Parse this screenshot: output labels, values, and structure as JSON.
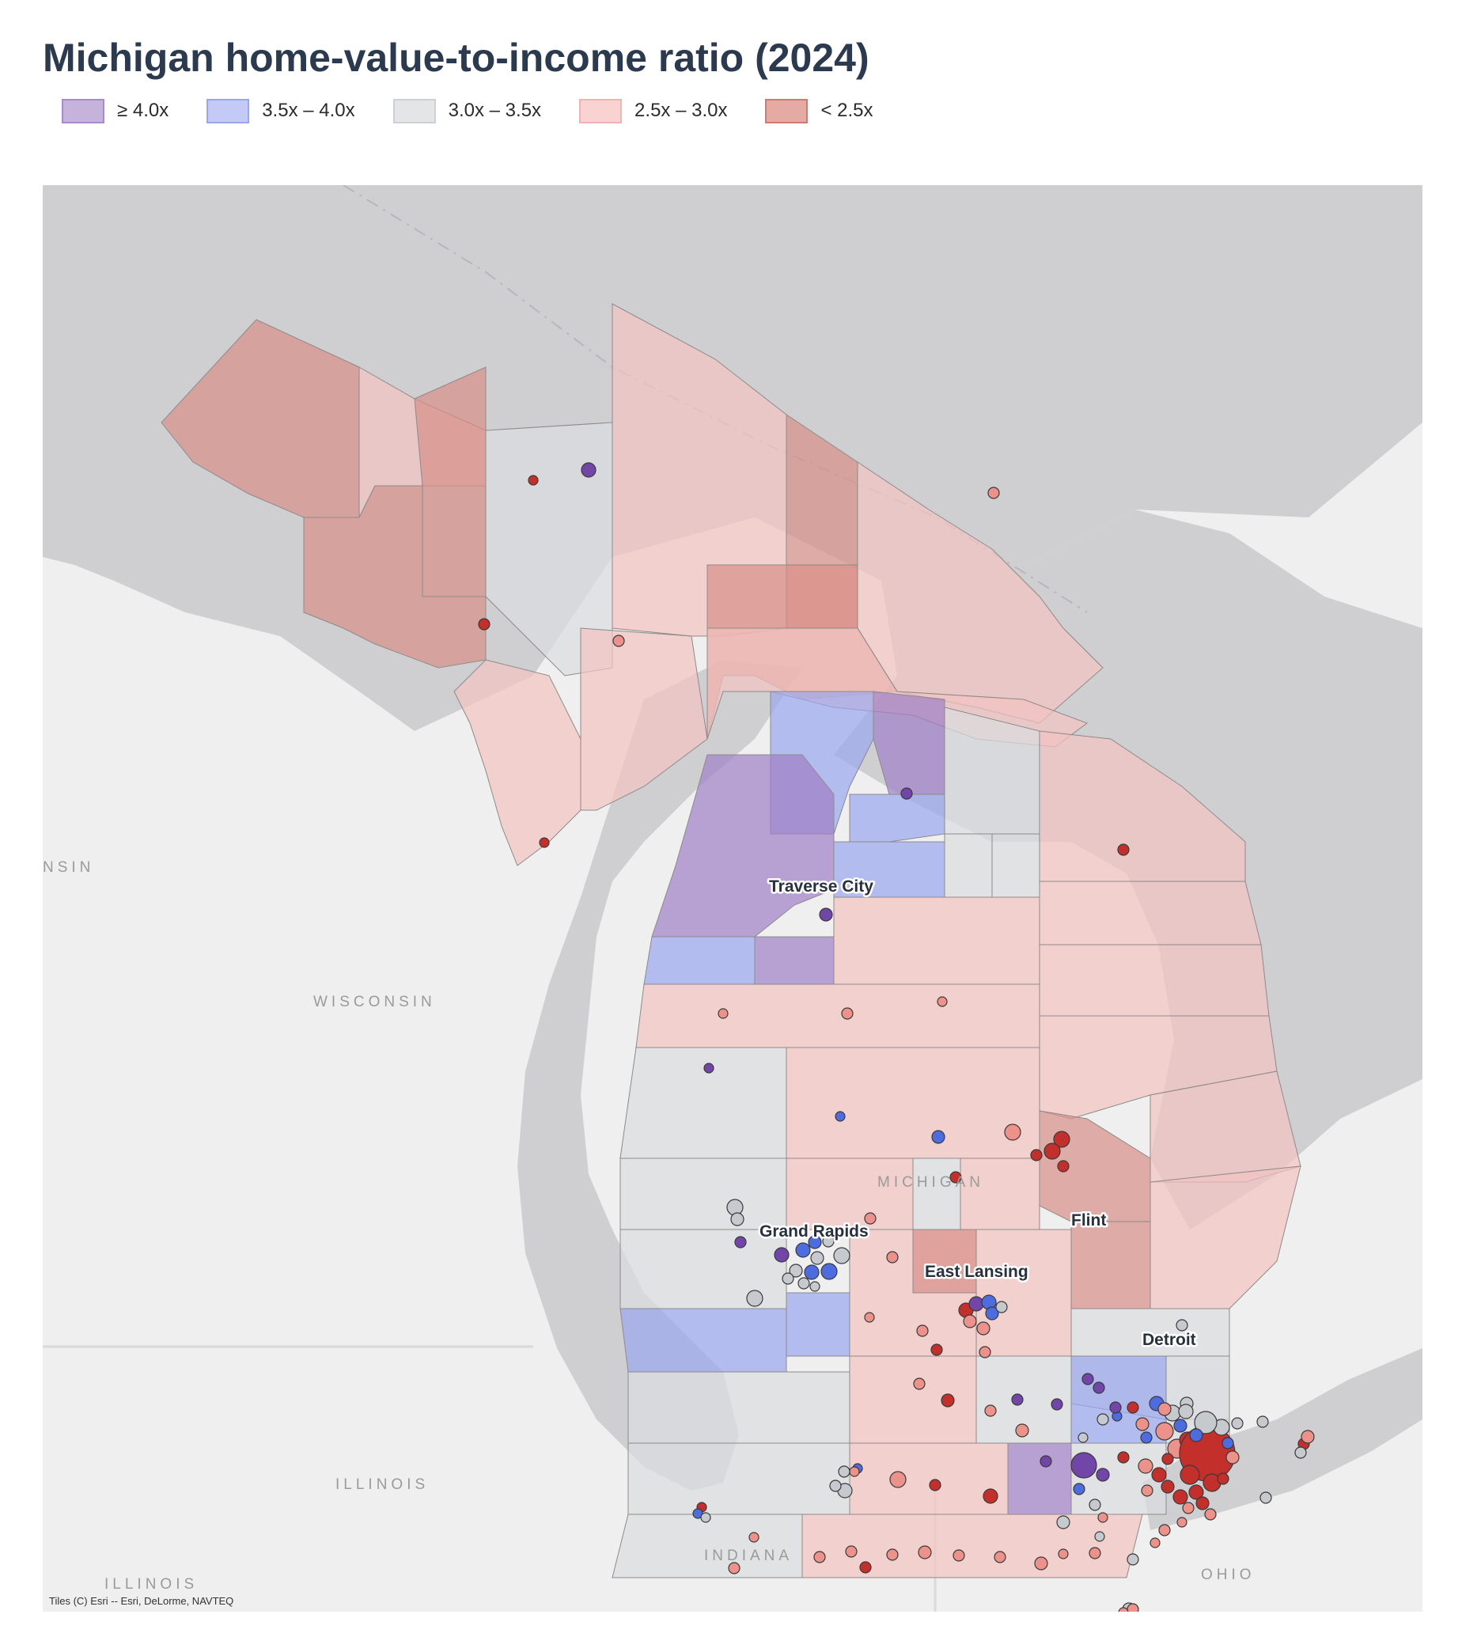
{
  "title": "Michigan home-value-to-income ratio (2024)",
  "legend": [
    {
      "label": "≥ 4.0x",
      "fill": "#c6b3dc",
      "border": "#a78bcb"
    },
    {
      "label": "3.5x – 4.0x",
      "fill": "#c3caf5",
      "border": "#9aa6ef"
    },
    {
      "label": "3.0x – 3.5x",
      "fill": "#e3e5e7",
      "border": "#cdd0d4"
    },
    {
      "label": "2.5x – 3.0x",
      "fill": "#f8d3d1",
      "border": "#f0b3b0"
    },
    {
      "label": "< 2.5x",
      "fill": "#e5aaa4",
      "border": "#d17a72"
    }
  ],
  "colors": {
    "water": "#cfcfd2",
    "land": "#efefef",
    "county_fill": {
      "ge4": "#9f7fc6",
      "r35_40": "#9aa7ee",
      "r30_35": "#dcdde0",
      "r25_30": "#f2c3c0",
      "lt25": "#d98f88"
    },
    "dot_fill": {
      "ge4": "#7246a8",
      "r35_40": "#4c6ce0",
      "r30_35": "#c6c9cd",
      "r25_30": "#ec928b",
      "lt25": "#c32f2b"
    }
  },
  "map": {
    "state_labels": [
      "MICHIGAN",
      "WISCONSIN",
      "NSIN",
      "ILLINOIS",
      "ILLINOIS",
      "INDIANA",
      "OHIO"
    ],
    "city_labels": [
      "Traverse City",
      "Grand Rapids",
      "East Lansing",
      "Flint",
      "Detroit"
    ],
    "attribution": "Tiles (C) Esri -- Esri, DeLorme, NAVTEQ"
  }
}
